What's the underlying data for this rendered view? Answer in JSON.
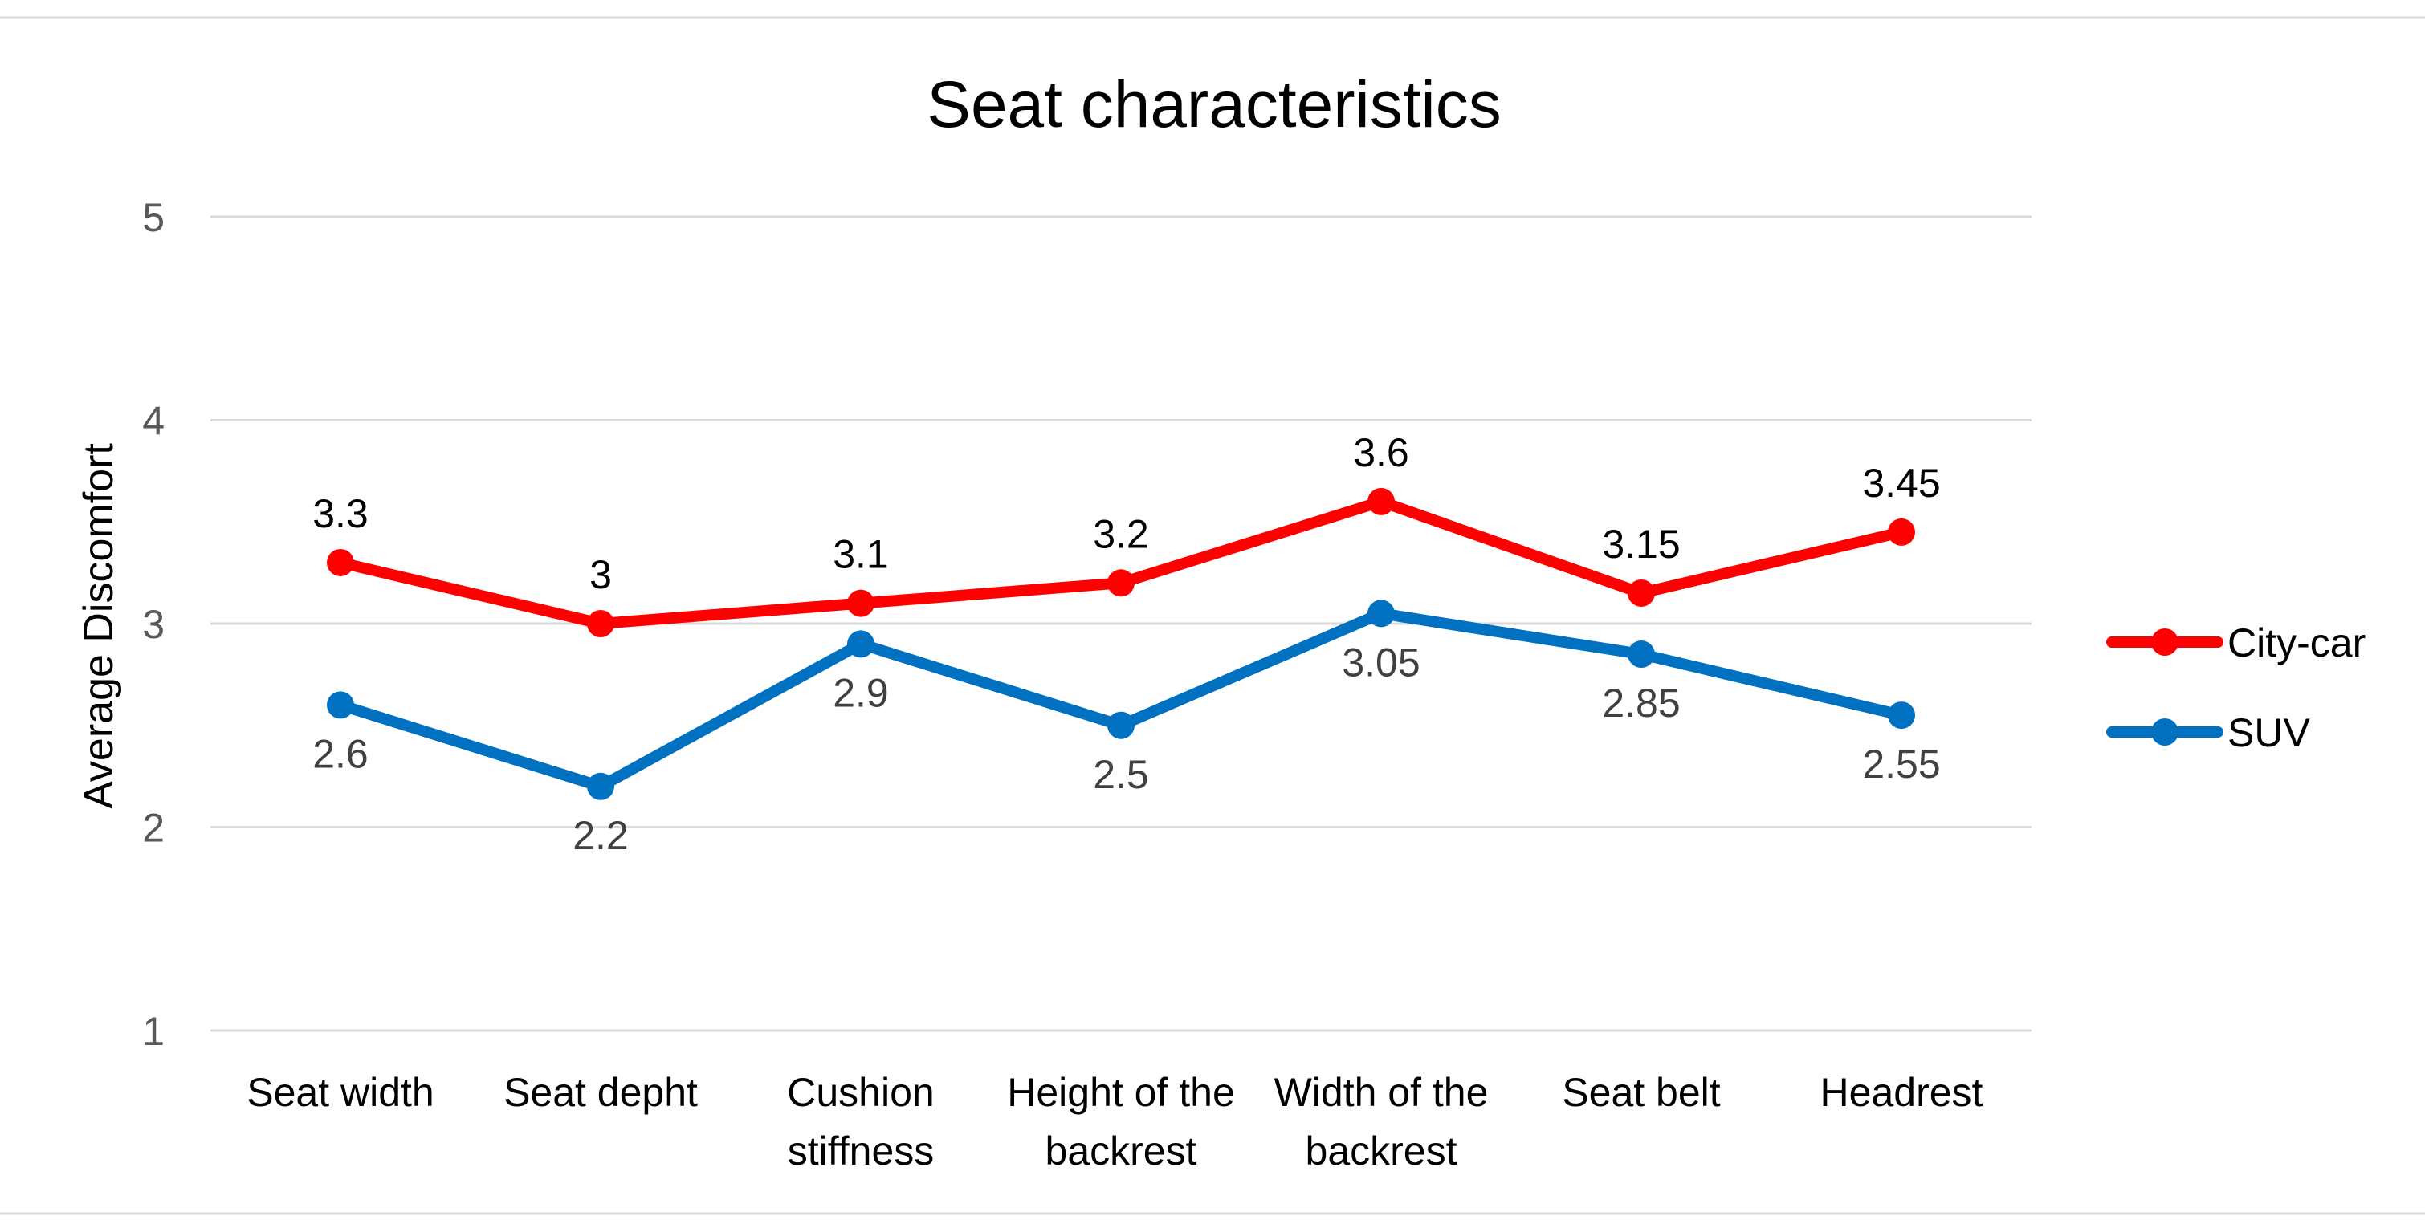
{
  "chart_data": {
    "type": "line",
    "title": "Seat characteristics",
    "xlabel": "",
    "ylabel": "Average Discomfort",
    "ylim": [
      1,
      5
    ],
    "yticks": [
      "1",
      "2",
      "3",
      "4",
      "5"
    ],
    "grid": true,
    "legend_position": "right",
    "categories": [
      [
        "Seat width"
      ],
      [
        "Seat depht"
      ],
      [
        "Cushion",
        "stiffness"
      ],
      [
        "Height of the",
        "backrest"
      ],
      [
        "Width of the",
        "backrest"
      ],
      [
        "Seat belt"
      ],
      [
        "Headrest"
      ]
    ],
    "series": [
      {
        "name": "City-car",
        "color": "#ff0000",
        "values": [
          3.3,
          3,
          3.1,
          3.2,
          3.6,
          3.15,
          3.45
        ],
        "labels": [
          "3.3",
          "3",
          "3.1",
          "3.2",
          "3.6",
          "3.15",
          "3.45"
        ]
      },
      {
        "name": "SUV",
        "color": "#0070c0",
        "values": [
          2.6,
          2.2,
          2.9,
          2.5,
          3.05,
          2.85,
          2.55
        ],
        "labels": [
          "2.6",
          "2.2",
          "2.9",
          "2.5",
          "3.05",
          "2.85",
          "2.55"
        ]
      }
    ]
  }
}
